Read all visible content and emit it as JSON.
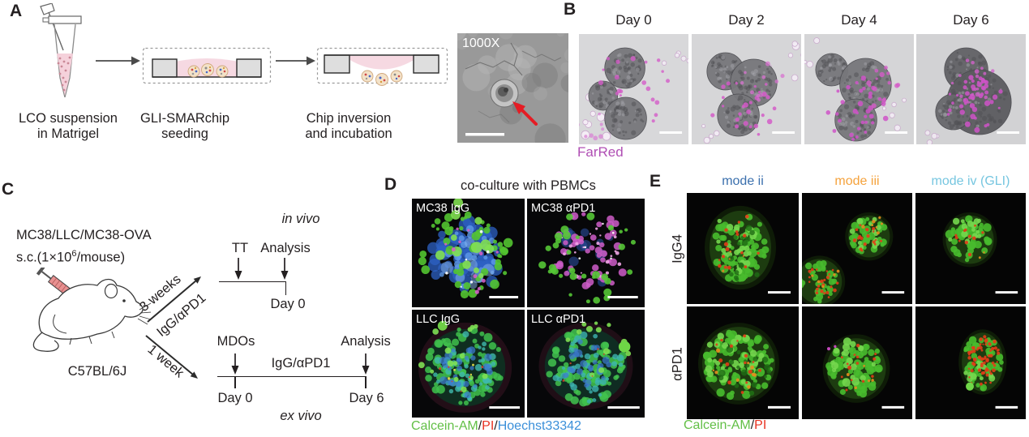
{
  "panelA": {
    "label": "A",
    "steps": [
      {
        "line1": "LCO suspension",
        "line2": "in Matrigel"
      },
      {
        "line1": "GLI-SMARchip",
        "line2": "seeding"
      },
      {
        "line1": "Chip inversion",
        "line2": "and incubation"
      }
    ],
    "sem": {
      "magnification": "1000X"
    }
  },
  "panelB": {
    "label": "B",
    "days": [
      "Day 0",
      "Day 2",
      "Day 4",
      "Day 6"
    ],
    "stain": "FarRed",
    "stain_color": "#b04fb4"
  },
  "panelC": {
    "label": "C",
    "tumor_line1": "MC38/LLC/MC38-OVA",
    "inj_prefix": "s.c.(1×10",
    "inj_sup": "6",
    "inj_suffix": "/mouse)",
    "strain": "C57BL/6J",
    "top_duration": "3 weeks",
    "top_treatment": "IgG/αPD1",
    "bottom_duration": "1 week",
    "invivo": {
      "context": "in vivo",
      "tt": "TT",
      "analysis": "Analysis",
      "day0": "Day 0"
    },
    "exvivo": {
      "mdos": "MDOs",
      "treatment": "IgG/αPD1",
      "analysis": "Analysis",
      "day0": "Day 0",
      "day6": "Day 6",
      "context": "ex vivo"
    }
  },
  "panelD": {
    "label": "D",
    "title": "co-culture with PBMCs",
    "tiles": [
      {
        "label": "MC38 IgG"
      },
      {
        "label": "MC38 αPD1"
      },
      {
        "label": "LLC IgG"
      },
      {
        "label": "LLC αPD1"
      }
    ],
    "sep": "/",
    "legend": [
      {
        "text": "Calcein-AM",
        "color": "#62bf46"
      },
      {
        "text": "PI",
        "color": "#e83323"
      },
      {
        "text": "Hoechst33342",
        "color": "#3a8fd9"
      }
    ]
  },
  "panelE": {
    "label": "E",
    "columns": [
      {
        "label": "mode ii",
        "color": "#3a6fad"
      },
      {
        "label": "mode iii",
        "color": "#f5a23c"
      },
      {
        "label": "mode iv (GLI)",
        "color": "#76c6e0"
      }
    ],
    "rows": [
      {
        "label": "IgG4"
      },
      {
        "label": "αPD1"
      }
    ],
    "sep": "/",
    "legend": [
      {
        "text": "Calcein-AM",
        "color": "#62bf46"
      },
      {
        "text": "PI",
        "color": "#e83323"
      }
    ]
  }
}
